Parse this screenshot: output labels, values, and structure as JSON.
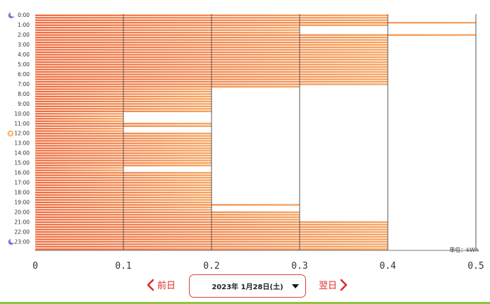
{
  "chart_data": {
    "type": "bar",
    "orientation": "horizontal",
    "unit_label": "単位：kWh",
    "x_ticks": [
      "0",
      "0.1",
      "0.2",
      "0.3",
      "0.4",
      "0.5"
    ],
    "xlim": [
      0,
      0.5
    ],
    "grid": true,
    "hour_labels": [
      "0:00",
      "1:00",
      "2:00",
      "3:00",
      "4:00",
      "5:00",
      "6:00",
      "7:00",
      "8:00",
      "9:00",
      "10:00",
      "11:00",
      "12:00",
      "13:00",
      "14:00",
      "15:00",
      "16:00",
      "17:00",
      "18:00",
      "19:00",
      "20:00",
      "21:00",
      "22:00",
      "23:00"
    ],
    "night_icon_hours": [
      0,
      23
    ],
    "sun_icon_hours": [
      12
    ],
    "values": [
      0.4,
      0.4,
      0.4,
      0.5,
      0.4,
      0.3,
      0.3,
      0.3,
      0.5,
      0.4,
      0.4,
      0.4,
      0.4,
      0.4,
      0.4,
      0.4,
      0.4,
      0.4,
      0.4,
      0.4,
      0.4,
      0.4,
      0.4,
      0.4,
      0.4,
      0.4,
      0.4,
      0.4,
      0.4,
      0.3,
      0.2,
      0.2,
      0.2,
      0.2,
      0.2,
      0.2,
      0.2,
      0.2,
      0.2,
      0.2,
      0.1,
      0.1,
      0.1,
      0.1,
      0.2,
      0.2,
      0.1,
      0.1,
      0.2,
      0.2,
      0.2,
      0.2,
      0.2,
      0.2,
      0.2,
      0.2,
      0.2,
      0.2,
      0.2,
      0.2,
      0.2,
      0.2,
      0.1,
      0.1,
      0.2,
      0.2,
      0.2,
      0.2,
      0.2,
      0.2,
      0.2,
      0.2,
      0.2,
      0.2,
      0.2,
      0.2,
      0.2,
      0.3,
      0.2,
      0.2,
      0.3,
      0.3,
      0.3,
      0.3,
      0.4,
      0.4,
      0.4,
      0.4,
      0.4,
      0.4,
      0.4,
      0.4,
      0.4,
      0.4,
      0.4,
      0.4
    ],
    "colors": {
      "bar_start": "#f06a3c",
      "bar_end": "#f7a35c",
      "grid": "#555555",
      "axis": "#777777"
    }
  },
  "nav": {
    "prev_label": "前日",
    "next_label": "翌日",
    "date_label": "2023年 1月28日(土)",
    "accent_color": "#e02a2a"
  }
}
